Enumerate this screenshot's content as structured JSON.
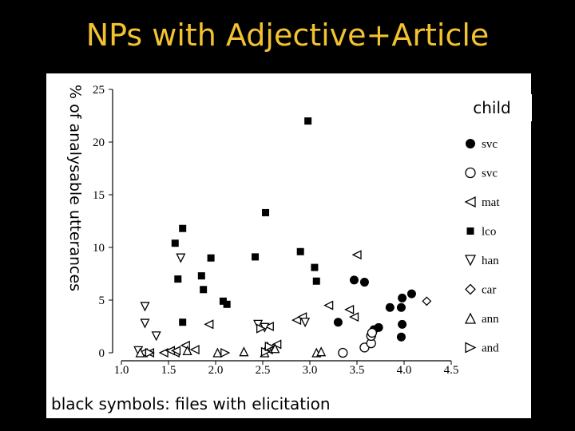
{
  "slide": {
    "title": "NPs with Adjective+Article",
    "footer": "black symbols: files with elicitation"
  },
  "colors": {
    "title": "#f2c230",
    "background": "#000000",
    "panel": "#ffffff",
    "marks": "#000000"
  },
  "chart_data": {
    "type": "scatter",
    "title": "NPs with Adjective+Article",
    "ylabel": "% of analysable utterances",
    "xlabel": "",
    "legend_title": "child",
    "legend_position": "right",
    "grid": false,
    "xlim": [
      1.0,
      4.5
    ],
    "ylim": [
      0,
      25
    ],
    "xticks": [
      "1.0",
      "1.5",
      "2.0",
      "2.5",
      "3.0",
      "3.5",
      "4.0",
      "4.5"
    ],
    "yticks": [
      "0",
      "5",
      "10",
      "15",
      "20",
      "25"
    ],
    "series": [
      {
        "name": "svc",
        "marker": "circle-filled",
        "points": [
          [
            3.3,
            2.9
          ],
          [
            3.68,
            2.2
          ],
          [
            3.73,
            2.4
          ],
          [
            3.85,
            4.3
          ],
          [
            3.98,
            5.2
          ],
          [
            4.08,
            5.6
          ],
          [
            3.97,
            4.3
          ],
          [
            3.98,
            2.7
          ],
          [
            3.97,
            1.5
          ],
          [
            3.47,
            6.9
          ],
          [
            3.58,
            6.7
          ]
        ]
      },
      {
        "name": "svc",
        "marker": "circle-open",
        "points": [
          [
            3.35,
            0.0
          ],
          [
            3.58,
            0.5
          ],
          [
            3.65,
            0.9
          ],
          [
            3.65,
            1.6
          ],
          [
            3.66,
            1.9
          ]
        ]
      },
      {
        "name": "mat",
        "marker": "triangle-left",
        "points": [
          [
            1.23,
            0.0
          ],
          [
            1.3,
            0.0
          ],
          [
            1.45,
            0.0
          ],
          [
            1.57,
            0.0
          ],
          [
            1.52,
            0.2
          ],
          [
            1.58,
            0.2
          ],
          [
            1.68,
            0.7
          ],
          [
            1.78,
            0.3
          ],
          [
            1.93,
            2.7
          ],
          [
            2.57,
            2.5
          ],
          [
            2.56,
            0.3
          ],
          [
            2.65,
            0.8
          ],
          [
            2.86,
            3.1
          ],
          [
            2.92,
            3.4
          ],
          [
            3.2,
            4.5
          ],
          [
            3.42,
            4.1
          ],
          [
            3.47,
            3.4
          ],
          [
            3.5,
            9.3
          ]
        ]
      },
      {
        "name": "lco",
        "marker": "square-filled",
        "points": [
          [
            1.57,
            10.4
          ],
          [
            1.65,
            11.8
          ],
          [
            1.6,
            7.0
          ],
          [
            1.65,
            2.9
          ],
          [
            1.85,
            7.3
          ],
          [
            1.87,
            6.0
          ],
          [
            1.95,
            9.0
          ],
          [
            2.08,
            4.9
          ],
          [
            2.12,
            4.6
          ],
          [
            2.42,
            9.1
          ],
          [
            2.53,
            13.3
          ],
          [
            2.9,
            9.6
          ],
          [
            2.98,
            22.0
          ],
          [
            3.05,
            8.1
          ],
          [
            3.07,
            6.8
          ]
        ]
      },
      {
        "name": "han",
        "marker": "triangle-down",
        "points": [
          [
            1.25,
            4.4
          ],
          [
            1.25,
            2.8
          ],
          [
            1.37,
            1.6
          ],
          [
            1.63,
            9.0
          ],
          [
            2.45,
            2.7
          ],
          [
            2.52,
            2.4
          ],
          [
            2.95,
            2.9
          ],
          [
            1.18,
            0.2
          ]
        ]
      },
      {
        "name": "car",
        "marker": "diamond-open",
        "points": [
          [
            4.24,
            4.9
          ]
        ]
      },
      {
        "name": "ann",
        "marker": "triangle-up",
        "points": [
          [
            1.2,
            0.0
          ],
          [
            2.02,
            0.0
          ],
          [
            2.3,
            0.1
          ],
          [
            2.52,
            0.0
          ],
          [
            2.55,
            0.6
          ],
          [
            2.63,
            0.4
          ],
          [
            3.07,
            0.0
          ],
          [
            3.12,
            0.1
          ],
          [
            1.7,
            0.2
          ]
        ]
      },
      {
        "name": "and",
        "marker": "triangle-right",
        "points": [
          [
            1.3,
            0.0
          ],
          [
            2.1,
            0.0
          ],
          [
            2.48,
            2.3
          ],
          [
            2.53,
            0.1
          ],
          [
            2.57,
            0.6
          ]
        ]
      }
    ]
  }
}
